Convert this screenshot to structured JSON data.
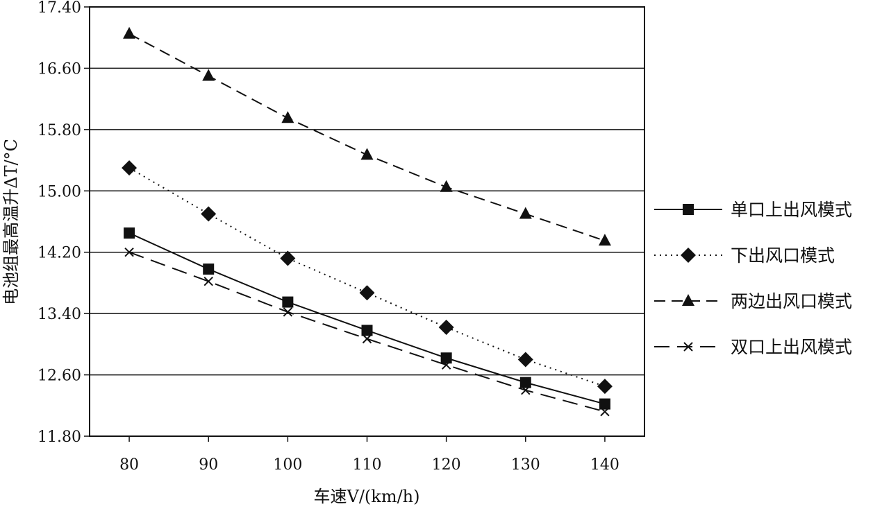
{
  "chart_data": {
    "type": "line",
    "xlabel": "车速V/(km/h)",
    "ylabel": "电池组最高温升ΔT/°C",
    "x": [
      80,
      90,
      100,
      110,
      120,
      130,
      140
    ],
    "xticks": [
      "80",
      "90",
      "100",
      "110",
      "120",
      "130",
      "140"
    ],
    "xlim": [
      75,
      145
    ],
    "yticks": [
      "11.80",
      "12.60",
      "13.40",
      "14.20",
      "15.00",
      "15.80",
      "16.60",
      "17.40"
    ],
    "ylim": [
      11.8,
      17.4
    ],
    "grid": "horizontal",
    "legend_position": "right",
    "series": [
      {
        "name": "单口上出风模式",
        "marker": "square",
        "line": "solid",
        "color": "#111111",
        "values": [
          14.45,
          13.98,
          13.55,
          13.18,
          12.82,
          12.5,
          12.22
        ]
      },
      {
        "name": "下出风口模式",
        "marker": "diamond",
        "line": "dotted",
        "color": "#111111",
        "values": [
          15.3,
          14.7,
          14.12,
          13.67,
          13.22,
          12.8,
          12.45
        ]
      },
      {
        "name": "两边出风口模式",
        "marker": "triangle",
        "line": "dashed",
        "color": "#111111",
        "values": [
          17.05,
          16.5,
          15.95,
          15.47,
          15.05,
          14.7,
          14.35
        ]
      },
      {
        "name": "双口上出风模式",
        "marker": "x",
        "line": "long-dashed",
        "color": "#111111",
        "values": [
          14.2,
          13.82,
          13.42,
          13.07,
          12.73,
          12.4,
          12.12
        ]
      }
    ]
  }
}
